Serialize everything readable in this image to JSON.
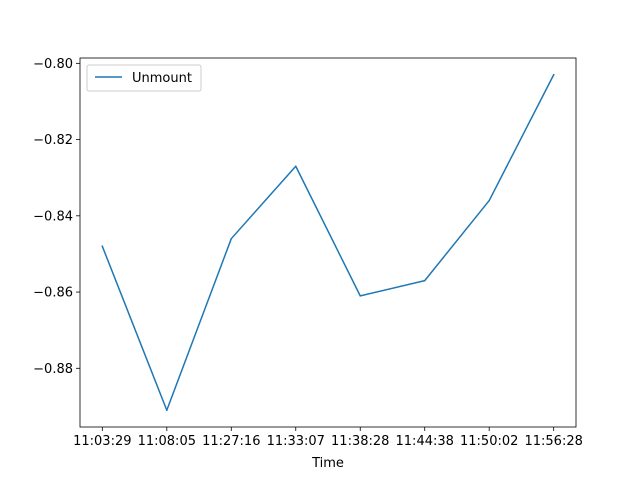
{
  "chart_data": {
    "type": "line",
    "title": "",
    "xlabel": "Time",
    "ylabel": "",
    "categories": [
      "11:03:29",
      "11:08:05",
      "11:27:16",
      "11:33:07",
      "11:38:28",
      "11:44:38",
      "11:50:02",
      "11:56:28"
    ],
    "series": [
      {
        "name": "Unmount",
        "color": "#1f77b4",
        "values": [
          -0.848,
          -0.891,
          -0.846,
          -0.827,
          -0.861,
          -0.857,
          -0.836,
          -0.803
        ]
      }
    ],
    "ylim": [
      -0.8954,
      -0.7986
    ],
    "yticks": [
      -0.88,
      -0.86,
      -0.84,
      -0.82,
      -0.8
    ],
    "ytick_labels": [
      "−0.88",
      "−0.86",
      "−0.84",
      "−0.82",
      "−0.80"
    ],
    "grid": false,
    "legend_position": "upper left"
  }
}
